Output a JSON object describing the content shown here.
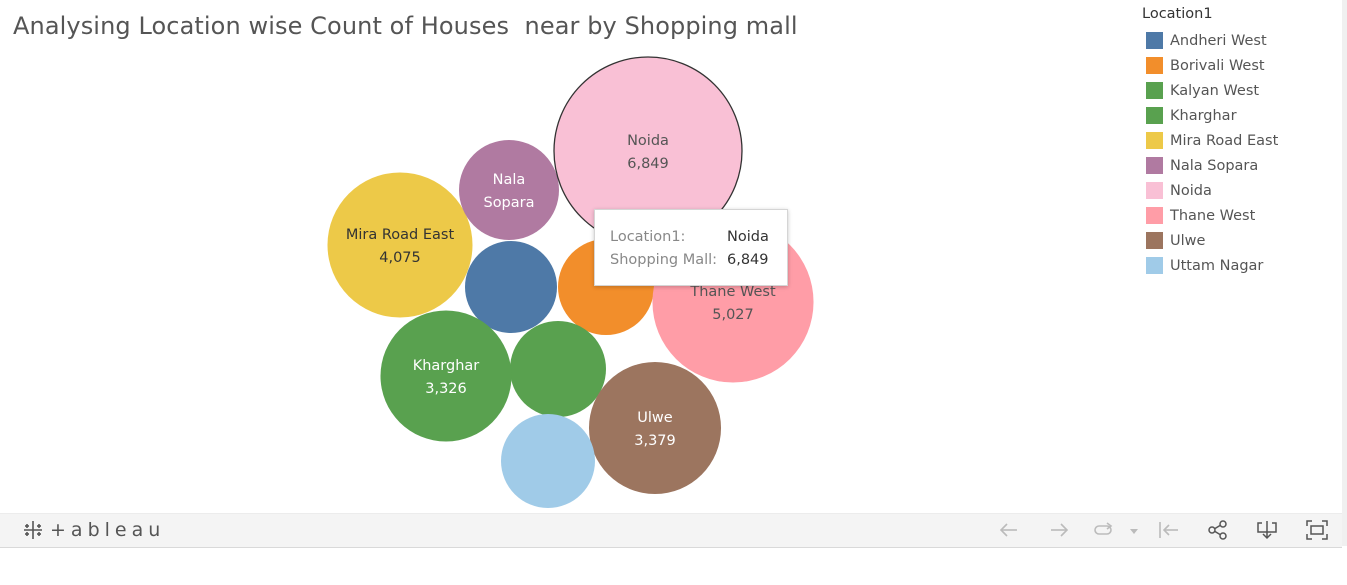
{
  "title": "Analysing Location wise Count of Houses  near by Shopping mall",
  "chart_data": {
    "type": "packed-bubble",
    "title": "Analysing Location wise Count of Houses  near by Shopping mall",
    "measure": "Shopping Mall",
    "dimension": "Location1",
    "series": [
      {
        "name": "Andheri West",
        "value": 2200,
        "color": "#4e79a7",
        "label_visible": false
      },
      {
        "name": "Borivali West",
        "value": 2200,
        "color": "#f28e2b",
        "label_visible": false
      },
      {
        "name": "Kalyan West",
        "value": 2200,
        "color": "#59a14f",
        "label_visible": false
      },
      {
        "name": "Kharghar",
        "value": 3326,
        "color": "#59a14f",
        "label_visible": true,
        "label_lines": [
          "Kharghar",
          "3,326"
        ],
        "label_color": "#ffffff"
      },
      {
        "name": "Mira Road East",
        "value": 4075,
        "color": "#edc948",
        "label_visible": true,
        "label_lines": [
          "Mira Road East",
          "4,075"
        ],
        "label_color": "#333333"
      },
      {
        "name": "Nala Sopara",
        "value": 2400,
        "color": "#b07aa1",
        "label_visible": true,
        "label_lines": [
          "Nala",
          "Sopara"
        ],
        "label_color": "#ffffff"
      },
      {
        "name": "Noida",
        "value": 6849,
        "color": "#f9c0d5",
        "label_visible": true,
        "label_lines": [
          "Noida",
          "6,849"
        ],
        "label_color": "#555555",
        "selected": true
      },
      {
        "name": "Thane West",
        "value": 5027,
        "color": "#ff9da7",
        "label_visible": true,
        "label_lines": [
          "Thane West",
          "5,027"
        ],
        "label_color": "#555555"
      },
      {
        "name": "Ulwe",
        "value": 3379,
        "color": "#9c755f",
        "label_visible": true,
        "label_lines": [
          "Ulwe",
          "3,379"
        ],
        "label_color": "#ffffff"
      },
      {
        "name": "Uttam Nagar",
        "value": 2100,
        "color": "#a0cbe8",
        "label_visible": false
      }
    ]
  },
  "legend": {
    "title": "Location1",
    "items": [
      {
        "label": "Andheri West",
        "color": "#4e79a7"
      },
      {
        "label": "Borivali West",
        "color": "#f28e2b"
      },
      {
        "label": "Kalyan West",
        "color": "#59a14f"
      },
      {
        "label": "Kharghar",
        "color": "#59a14f"
      },
      {
        "label": "Mira Road East",
        "color": "#edc948"
      },
      {
        "label": "Nala Sopara",
        "color": "#b07aa1"
      },
      {
        "label": "Noida",
        "color": "#f9c0d5"
      },
      {
        "label": "Thane West",
        "color": "#ff9da7"
      },
      {
        "label": "Ulwe",
        "color": "#9c755f"
      },
      {
        "label": "Uttam Nagar",
        "color": "#a0cbe8"
      }
    ]
  },
  "tooltip": {
    "row1_label": "Location1:",
    "row1_value": "Noida",
    "row2_label": "Shopping Mall:",
    "row2_value": "6,849"
  },
  "toolbar": {
    "logo_text": "+ableau",
    "icons": [
      "undo-icon",
      "redo-icon",
      "revert-icon",
      "dropdown-icon",
      "reset-icon",
      "share-icon",
      "download-icon",
      "fullscreen-icon"
    ]
  }
}
